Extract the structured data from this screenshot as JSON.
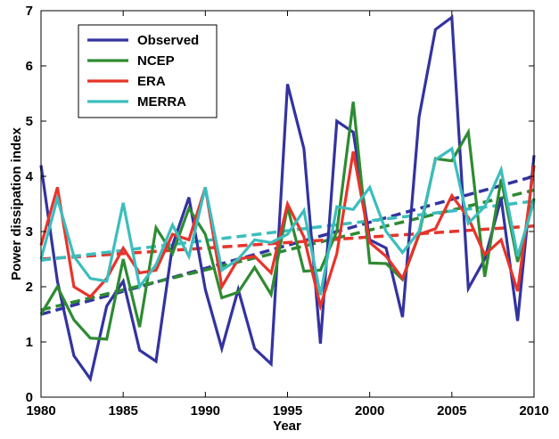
{
  "chart_data": {
    "type": "line",
    "title": "",
    "xlabel": "Year",
    "ylabel": "Power dissipation index",
    "xlim": [
      1980,
      2010
    ],
    "ylim": [
      0,
      7
    ],
    "xticks": [
      1980,
      1985,
      1990,
      1995,
      2000,
      2005,
      2010
    ],
    "yticks": [
      0,
      1,
      2,
      3,
      4,
      5,
      6,
      7
    ],
    "grid": false,
    "legend_position": "top-left",
    "x": [
      1980,
      1981,
      1982,
      1983,
      1984,
      1985,
      1986,
      1987,
      1988,
      1989,
      1990,
      1991,
      1992,
      1993,
      1994,
      1995,
      1996,
      1997,
      1998,
      1999,
      2000,
      2001,
      2002,
      2003,
      2004,
      2005,
      2006,
      2007,
      2008,
      2009,
      2010
    ],
    "series": [
      {
        "name": "Observed",
        "color": "#3333a0",
        "values": [
          4.2,
          2.1,
          0.75,
          0.33,
          1.65,
          2.1,
          0.85,
          0.65,
          2.75,
          3.62,
          1.95,
          0.88,
          1.95,
          0.88,
          0.6,
          5.67,
          4.5,
          0.97,
          5.0,
          4.8,
          2.85,
          2.7,
          1.45,
          5.07,
          6.66,
          6.88,
          1.97,
          2.5,
          3.6,
          1.38,
          4.38
        ]
      },
      {
        "name": "NCEP",
        "color": "#2e8b32",
        "values": [
          1.5,
          2.0,
          1.4,
          1.07,
          1.05,
          2.5,
          1.27,
          3.07,
          2.6,
          3.42,
          2.95,
          1.8,
          1.9,
          2.35,
          1.86,
          3.45,
          2.28,
          2.3,
          3.0,
          5.35,
          2.43,
          2.42,
          2.13,
          2.94,
          4.32,
          4.28,
          4.8,
          2.18,
          3.95,
          2.45,
          3.6
        ]
      },
      {
        "name": "ERA",
        "color": "#e8342a",
        "values": [
          2.75,
          3.8,
          2.0,
          1.82,
          2.15,
          2.7,
          2.25,
          2.3,
          2.95,
          2.85,
          3.8,
          2.0,
          2.5,
          2.55,
          2.25,
          3.5,
          2.9,
          1.65,
          2.6,
          4.45,
          2.8,
          2.55,
          2.15,
          2.95,
          3.05,
          3.65,
          3.25,
          2.58,
          2.85,
          1.92,
          4.2
        ]
      },
      {
        "name": "MERRA",
        "color": "#3cbdbd",
        "values": [
          2.5,
          3.6,
          2.55,
          2.15,
          2.1,
          3.52,
          2.0,
          2.4,
          3.12,
          2.55,
          3.8,
          2.3,
          2.5,
          2.85,
          2.8,
          2.95,
          3.38,
          1.85,
          3.45,
          3.4,
          3.8,
          3.0,
          2.62,
          3.0,
          4.3,
          4.5,
          3.15,
          3.45,
          4.12,
          2.55,
          3.55
        ]
      }
    ],
    "trendlines": [
      {
        "series": "Observed",
        "color": "#3333a0",
        "x": [
          1980,
          2010
        ],
        "values": [
          1.5,
          4.0
        ]
      },
      {
        "series": "NCEP",
        "color": "#2e8b32",
        "x": [
          1980,
          2010
        ],
        "values": [
          1.58,
          3.75
        ]
      },
      {
        "series": "ERA",
        "color": "#e8342a",
        "x": [
          1980,
          2010
        ],
        "values": [
          2.5,
          3.1
        ]
      },
      {
        "series": "MERRA",
        "color": "#3cbdbd",
        "x": [
          1980,
          2010
        ],
        "values": [
          2.48,
          3.55
        ]
      }
    ]
  }
}
